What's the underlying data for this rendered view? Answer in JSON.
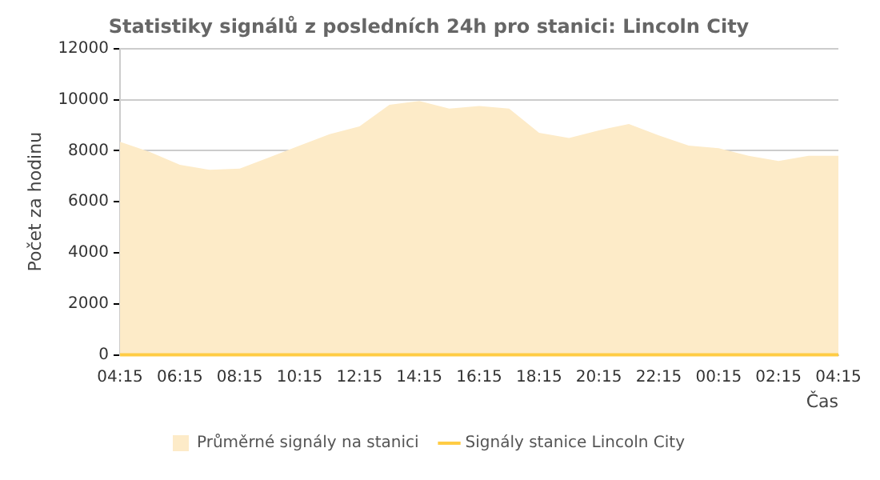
{
  "chart_data": {
    "type": "area",
    "title": "Statistiky signálů z posledních 24h pro stanici: Lincoln City",
    "xlabel": "Čas",
    "ylabel": "Počet za hodinu",
    "categories": [
      "04:15",
      null,
      "06:15",
      null,
      "08:15",
      null,
      "10:15",
      null,
      "12:15",
      null,
      "14:15",
      null,
      "16:15",
      null,
      "18:15",
      null,
      "20:15",
      null,
      "22:15",
      null,
      "00:15",
      null,
      "02:15",
      null,
      "04:15"
    ],
    "series": [
      {
        "name": "Průměrné signály na stanici",
        "color": "#fdebc8",
        "values": [
          8350,
          7950,
          7450,
          7250,
          7300,
          7750,
          8200,
          8650,
          8950,
          9800,
          9950,
          9650,
          9750,
          9650,
          8700,
          8500,
          8800,
          9050,
          8600,
          8200,
          8100,
          7800,
          7600,
          7800,
          7800
        ]
      },
      {
        "name": "Signály stanice Lincoln City",
        "type": "line",
        "color": "#ffcc44",
        "values": [
          0,
          0,
          0,
          0,
          0,
          0,
          0,
          0,
          0,
          0,
          0,
          0,
          0,
          0,
          0,
          0,
          0,
          0,
          0,
          0,
          0,
          0,
          0,
          0,
          0
        ]
      }
    ],
    "ylim": [
      0,
      12000
    ],
    "yticks": [
      0,
      2000,
      4000,
      6000,
      8000,
      10000,
      12000
    ],
    "grid": "y",
    "legend": "bottom",
    "marker": "none"
  }
}
